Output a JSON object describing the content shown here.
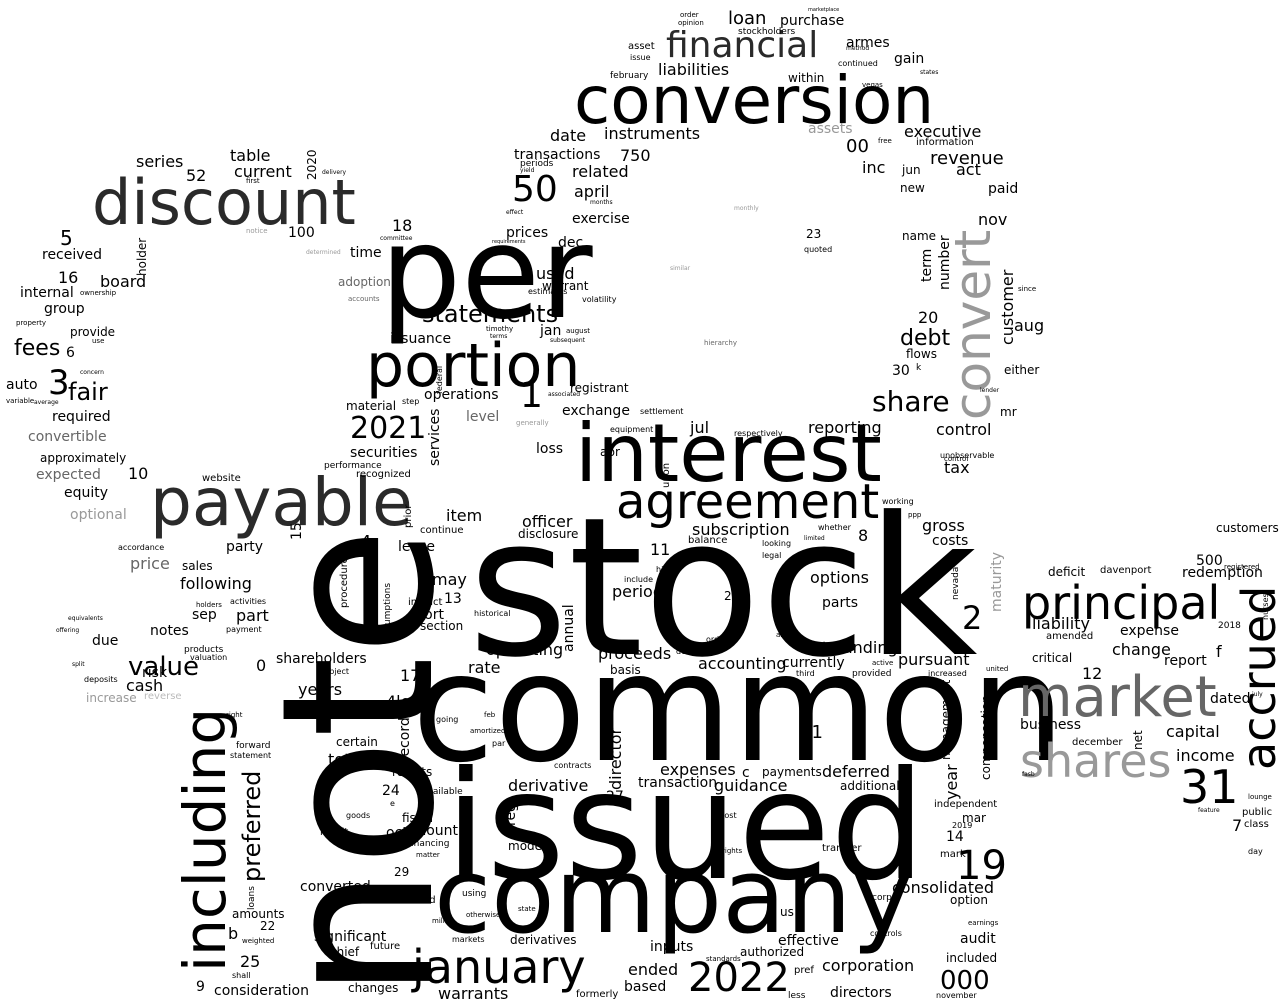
{
  "palette": {
    "background": "#ffffff",
    "black": "#000000",
    "dark_gray": "#2a2a2a",
    "mid_gray": "#666666",
    "light_gray": "#999999",
    "faint_gray": "#bbbbbb"
  },
  "words": [
    {
      "text": "stock"
    },
    {
      "text": "note"
    },
    {
      "text": "common"
    },
    {
      "text": "issued"
    },
    {
      "text": "company"
    },
    {
      "text": "conversion"
    },
    {
      "text": "per"
    },
    {
      "text": "interest"
    },
    {
      "text": "discount"
    },
    {
      "text": "payable"
    },
    {
      "text": "portion"
    },
    {
      "text": "including"
    },
    {
      "text": "agreement"
    },
    {
      "text": "convert"
    },
    {
      "text": "market"
    },
    {
      "text": "principal"
    },
    {
      "text": "accrued"
    },
    {
      "text": "shares"
    },
    {
      "text": "january"
    },
    {
      "text": "financial"
    },
    {
      "text": "2022"
    },
    {
      "text": "31"
    },
    {
      "text": "19"
    },
    {
      "text": "50"
    },
    {
      "text": "preferred"
    },
    {
      "text": "statements"
    },
    {
      "text": "2021"
    },
    {
      "text": "share"
    },
    {
      "text": "value"
    },
    {
      "text": "fair"
    },
    {
      "text": "fees"
    },
    {
      "text": "debt"
    },
    {
      "text": "2"
    },
    {
      "text": "3"
    },
    {
      "text": "1"
    },
    {
      "text": "customer"
    },
    {
      "text": "000"
    },
    {
      "text": "options"
    },
    {
      "text": "outstanding"
    },
    {
      "text": "accounting"
    },
    {
      "text": "consolidated"
    },
    {
      "text": "corporation"
    },
    {
      "text": "warrants"
    },
    {
      "text": "liabilities"
    },
    {
      "text": "loan"
    },
    {
      "text": "purchase"
    },
    {
      "text": "armes"
    },
    {
      "text": "instruments"
    },
    {
      "text": "executive"
    },
    {
      "text": "revenue"
    },
    {
      "text": "transactions"
    },
    {
      "text": "related"
    },
    {
      "text": "april"
    },
    {
      "text": "date"
    },
    {
      "text": "exercise"
    },
    {
      "text": "series"
    },
    {
      "text": "table"
    },
    {
      "text": "current"
    },
    {
      "text": "received"
    },
    {
      "text": "board"
    },
    {
      "text": "group"
    },
    {
      "text": "internal"
    },
    {
      "text": "provide"
    },
    {
      "text": "auto"
    },
    {
      "text": "required"
    },
    {
      "text": "convertible"
    },
    {
      "text": "approximately"
    },
    {
      "text": "expected"
    },
    {
      "text": "equity"
    },
    {
      "text": "optional"
    },
    {
      "text": "price"
    },
    {
      "text": "following"
    },
    {
      "text": "sales"
    },
    {
      "text": "part"
    },
    {
      "text": "notes"
    },
    {
      "text": "due"
    },
    {
      "text": "risk"
    },
    {
      "text": "cash"
    },
    {
      "text": "increase"
    },
    {
      "text": "reverse"
    },
    {
      "text": "shareholders"
    },
    {
      "text": "years"
    },
    {
      "text": "total"
    },
    {
      "text": "certain"
    },
    {
      "text": "recorded"
    },
    {
      "text": "results"
    },
    {
      "text": "amount"
    },
    {
      "text": "fiscal"
    },
    {
      "text": "converted"
    },
    {
      "text": "significant"
    },
    {
      "text": "consideration"
    },
    {
      "text": "changes"
    },
    {
      "text": "amounts"
    },
    {
      "text": "issuance"
    },
    {
      "text": "operations"
    },
    {
      "text": "level"
    },
    {
      "text": "securities"
    },
    {
      "text": "services"
    },
    {
      "text": "material"
    },
    {
      "text": "loss"
    },
    {
      "text": "exchange"
    },
    {
      "text": "registrant"
    },
    {
      "text": "reporting"
    },
    {
      "text": "control"
    },
    {
      "text": "tax"
    },
    {
      "text": "jul"
    },
    {
      "text": "item"
    },
    {
      "text": "officer"
    },
    {
      "text": "disclosure"
    },
    {
      "text": "subscription"
    },
    {
      "text": "lease"
    },
    {
      "text": "may"
    },
    {
      "text": "period"
    },
    {
      "text": "annual"
    },
    {
      "text": "operating"
    },
    {
      "text": "rate"
    },
    {
      "text": "proceeds"
    },
    {
      "text": "basis"
    },
    {
      "text": "director"
    },
    {
      "text": "derivative"
    },
    {
      "text": "expenses"
    },
    {
      "text": "transaction"
    },
    {
      "text": "guidance"
    },
    {
      "text": "payments"
    },
    {
      "text": "deferred"
    },
    {
      "text": "additional"
    },
    {
      "text": "currently"
    },
    {
      "text": "parts"
    },
    {
      "text": "gross"
    },
    {
      "text": "costs"
    },
    {
      "text": "pursuant"
    },
    {
      "text": "management"
    },
    {
      "text": "compensation"
    },
    {
      "text": "year"
    },
    {
      "text": "maturity"
    },
    {
      "text": "redemption"
    },
    {
      "text": "customers"
    },
    {
      "text": "deficit"
    },
    {
      "text": "davenport"
    },
    {
      "text": "liability"
    },
    {
      "text": "amended"
    },
    {
      "text": "expense"
    },
    {
      "text": "change"
    },
    {
      "text": "report"
    },
    {
      "text": "critical"
    },
    {
      "text": "dated"
    },
    {
      "text": "business"
    },
    {
      "text": "capital"
    },
    {
      "text": "income"
    },
    {
      "text": "net"
    },
    {
      "text": "december"
    },
    {
      "text": "public"
    },
    {
      "text": "class"
    },
    {
      "text": "audit"
    },
    {
      "text": "included"
    },
    {
      "text": "option"
    },
    {
      "text": "effective"
    },
    {
      "text": "authorized"
    },
    {
      "text": "inputs"
    },
    {
      "text": "ended"
    },
    {
      "text": "directors"
    },
    {
      "text": "based"
    },
    {
      "text": "derivatives"
    },
    {
      "text": "embedded"
    },
    {
      "text": "model"
    },
    {
      "text": "reg"
    },
    {
      "text": "assets"
    },
    {
      "text": "information"
    },
    {
      "text": "act"
    },
    {
      "text": "paid"
    },
    {
      "text": "nov"
    },
    {
      "text": "number"
    },
    {
      "text": "term"
    },
    {
      "text": "name"
    },
    {
      "text": "aug"
    },
    {
      "text": "flows"
    },
    {
      "text": "mr"
    },
    {
      "text": "either"
    },
    {
      "text": "used"
    },
    {
      "text": "warrant"
    },
    {
      "text": "prices"
    },
    {
      "text": "dec"
    },
    {
      "text": "jan"
    },
    {
      "text": "holder"
    },
    {
      "text": "adoption"
    },
    {
      "text": "time"
    },
    {
      "text": "gain"
    },
    {
      "text": "within"
    },
    {
      "text": "continued"
    },
    {
      "text": "new"
    },
    {
      "text": "inc"
    },
    {
      "text": "jun"
    },
    {
      "text": "16"
    },
    {
      "text": "5"
    },
    {
      "text": "52"
    },
    {
      "text": "100"
    },
    {
      "text": "18"
    },
    {
      "text": "750"
    },
    {
      "text": "00"
    },
    {
      "text": "23"
    },
    {
      "text": "20"
    },
    {
      "text": "30"
    },
    {
      "text": "6"
    },
    {
      "text": "10"
    },
    {
      "text": "4"
    },
    {
      "text": "15"
    },
    {
      "text": "17"
    },
    {
      "text": "13"
    },
    {
      "text": "0"
    },
    {
      "text": "4less"
    },
    {
      "text": "11"
    },
    {
      "text": "8"
    },
    {
      "text": "26"
    },
    {
      "text": "21"
    },
    {
      "text": "c"
    },
    {
      "text": "24"
    },
    {
      "text": "27"
    },
    {
      "text": "29"
    },
    {
      "text": "n"
    },
    {
      "text": "b"
    },
    {
      "text": "22"
    },
    {
      "text": "25"
    },
    {
      "text": "9"
    },
    {
      "text": "14"
    },
    {
      "text": "12"
    },
    {
      "text": "7"
    },
    {
      "text": "500"
    },
    {
      "text": "f"
    },
    {
      "text": "mar"
    },
    {
      "text": "oct"
    },
    {
      "text": "sep"
    },
    {
      "text": "apr"
    },
    {
      "text": "2020"
    },
    {
      "text": "website"
    },
    {
      "text": "chief"
    },
    {
      "text": "future"
    },
    {
      "text": "us"
    },
    {
      "text": "independent"
    },
    {
      "text": "transfer"
    },
    {
      "text": "pref"
    },
    {
      "text": "mark"
    },
    {
      "text": "short"
    },
    {
      "text": "section"
    },
    {
      "text": "historical"
    },
    {
      "text": "order"
    },
    {
      "text": "opinion"
    },
    {
      "text": "stockholders"
    },
    {
      "text": "asset"
    },
    {
      "text": "issue"
    },
    {
      "text": "february"
    },
    {
      "text": "upon"
    },
    {
      "text": "recognized"
    },
    {
      "text": "performance"
    },
    {
      "text": "party"
    },
    {
      "text": "accordance"
    },
    {
      "text": "deposits"
    },
    {
      "text": "payment"
    },
    {
      "text": "products"
    },
    {
      "text": "valuation"
    },
    {
      "text": "activities"
    },
    {
      "text": "holders"
    },
    {
      "text": "statement"
    },
    {
      "text": "forward"
    },
    {
      "text": "right"
    },
    {
      "text": "result"
    },
    {
      "text": "goods"
    },
    {
      "text": "loans"
    },
    {
      "text": "shall"
    },
    {
      "text": "weighted"
    },
    {
      "text": "formerly"
    },
    {
      "text": "cost"
    },
    {
      "text": "rights"
    },
    {
      "text": "markets"
    },
    {
      "text": "state"
    },
    {
      "text": "using"
    },
    {
      "text": "otherwise"
    },
    {
      "text": "million"
    },
    {
      "text": "financing"
    },
    {
      "text": "matter"
    },
    {
      "text": "available"
    },
    {
      "text": "contracts"
    },
    {
      "text": "controls"
    },
    {
      "text": "corp"
    },
    {
      "text": "2018"
    },
    {
      "text": "2019"
    },
    {
      "text": "day"
    },
    {
      "text": "november"
    },
    {
      "text": "earnings"
    },
    {
      "text": "less"
    },
    {
      "text": "standards"
    },
    {
      "text": "control"
    },
    {
      "text": "unobservable"
    },
    {
      "text": "respectively"
    },
    {
      "text": "subject"
    },
    {
      "text": "procedures"
    },
    {
      "text": "assumptions"
    },
    {
      "text": "prior"
    },
    {
      "text": "continue"
    },
    {
      "text": "looking"
    },
    {
      "text": "legal"
    },
    {
      "text": "whether"
    },
    {
      "text": "limited"
    },
    {
      "text": "balance"
    },
    {
      "text": "include"
    },
    {
      "text": "high"
    },
    {
      "text": "impact"
    },
    {
      "text": "orders"
    },
    {
      "text": "default"
    },
    {
      "text": "provided"
    },
    {
      "text": "third"
    },
    {
      "text": "also"
    },
    {
      "text": "increased"
    },
    {
      "text": "active"
    },
    {
      "text": "united"
    },
    {
      "text": "nevada"
    },
    {
      "text": "working"
    },
    {
      "text": "ppp"
    },
    {
      "text": "nurses"
    },
    {
      "text": "registered"
    },
    {
      "text": "lounge"
    },
    {
      "text": "feature"
    },
    {
      "text": "july"
    },
    {
      "text": "entered"
    },
    {
      "text": "going"
    },
    {
      "text": "amortized"
    },
    {
      "text": "par"
    },
    {
      "text": "feb"
    },
    {
      "text": "generally"
    },
    {
      "text": "step"
    },
    {
      "text": "federal"
    },
    {
      "text": "settlement"
    },
    {
      "text": "equipment"
    },
    {
      "text": "free"
    },
    {
      "text": "vegas"
    },
    {
      "text": "method"
    },
    {
      "text": "marketplace"
    },
    {
      "text": "states"
    },
    {
      "text": "quoted"
    },
    {
      "text": "since"
    },
    {
      "text": "lender"
    },
    {
      "text": "monthly"
    },
    {
      "text": "similar"
    },
    {
      "text": "hierarchy"
    },
    {
      "text": "notice"
    },
    {
      "text": "first"
    },
    {
      "text": "delivery"
    },
    {
      "text": "committee"
    },
    {
      "text": "accounts"
    },
    {
      "text": "determined"
    },
    {
      "text": "ownership"
    },
    {
      "text": "property"
    },
    {
      "text": "average"
    },
    {
      "text": "concern"
    },
    {
      "text": "use"
    },
    {
      "text": "variable"
    },
    {
      "text": "equivalents"
    },
    {
      "text": "offering"
    },
    {
      "text": "split"
    },
    {
      "text": "k"
    },
    {
      "text": "e"
    },
    {
      "text": "fasb"
    },
    {
      "text": "timothy"
    },
    {
      "text": "terms"
    },
    {
      "text": "august"
    },
    {
      "text": "subsequent"
    },
    {
      "text": "associated"
    },
    {
      "text": "volatility"
    },
    {
      "text": "estimates"
    },
    {
      "text": "requirements"
    },
    {
      "text": "periods"
    },
    {
      "text": "yield"
    },
    {
      "text": "months"
    },
    {
      "text": "effect"
    }
  ]
}
